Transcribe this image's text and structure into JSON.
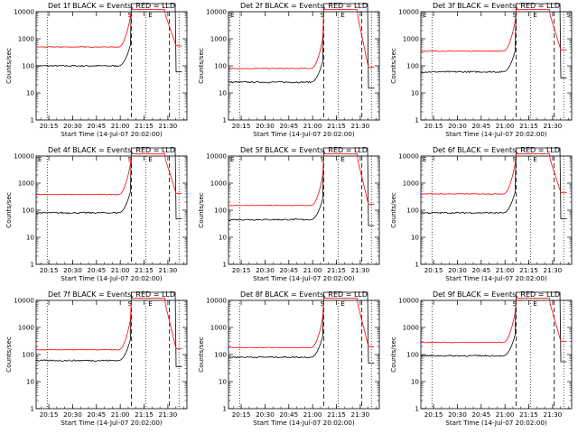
{
  "chart_data": [
    {
      "type": "line",
      "title": "Det 1f BLACK = Events, RED = LLD",
      "xlabel": "Start Time (14-Jul-07 20:02:00)",
      "ylabel": "Counts/sec",
      "x_ticks": [
        "20:15",
        "20:30",
        "20:45",
        "21:00",
        "21:15",
        "21:30"
      ],
      "x_range_minutes": [
        5,
        100
      ],
      "ylim": [
        1,
        10000
      ],
      "y_ticks": [
        "1",
        "10",
        "100",
        "1000",
        "10000"
      ],
      "y_scale": "log",
      "annotations": {
        "left": "",
        "right": "",
        "markers": [
          "S",
          "E"
        ]
      },
      "series": [
        {
          "color": "#000000",
          "start": 100
        },
        {
          "color": "#ff0000",
          "start": 500
        }
      ],
      "colors": {
        "events": "#000000",
        "lld": "#ff0000"
      }
    },
    {
      "type": "line",
      "title": "Det 2f BLACK = Events, RED = LLD",
      "xlabel": "Start Time (14-Jul-07 20:02:00)",
      "ylabel": "Counts/sec",
      "x_ticks": [
        "20:15",
        "20:30",
        "20:45",
        "21:00",
        "21:15",
        "21:30"
      ],
      "x_range_minutes": [
        5,
        100
      ],
      "ylim": [
        1,
        10000
      ],
      "y_ticks": [
        "1",
        "10",
        "100",
        "1000",
        "10000"
      ],
      "y_scale": "log",
      "annotations": {
        "left": "E",
        "right": "",
        "markers": [
          "S",
          "E"
        ]
      },
      "series": [
        {
          "color": "#000000",
          "start": 25
        },
        {
          "color": "#ff0000",
          "start": 80
        }
      ],
      "colors": {
        "events": "#000000",
        "lld": "#ff0000"
      }
    },
    {
      "type": "line",
      "title": "Det 3f BLACK = Events, RED = LLD",
      "xlabel": "Start Time (14-Jul-07 20:02:00)",
      "ylabel": "Counts/sec",
      "x_ticks": [
        "20:15",
        "20:30",
        "20:45",
        "21:00",
        "21:15",
        "21:30"
      ],
      "x_range_minutes": [
        5,
        100
      ],
      "ylim": [
        1,
        10000
      ],
      "y_ticks": [
        "1",
        "10",
        "100",
        "1000",
        "10000"
      ],
      "y_scale": "log",
      "annotations": {
        "left": "E",
        "right": "S",
        "markers": [
          "S",
          "E"
        ]
      },
      "series": [
        {
          "color": "#000000",
          "start": 60
        },
        {
          "color": "#ff0000",
          "start": 350
        }
      ],
      "colors": {
        "events": "#000000",
        "lld": "#ff0000"
      }
    },
    {
      "type": "line",
      "title": "Det 4f BLACK = Events, RED = LLD",
      "xlabel": "Start Time (14-Jul-07 20:02:00)",
      "ylabel": "Counts/sec",
      "x_ticks": [
        "20:15",
        "20:30",
        "20:45",
        "21:00",
        "21:15",
        "21:30"
      ],
      "x_range_minutes": [
        5,
        100
      ],
      "ylim": [
        1,
        10000
      ],
      "y_ticks": [
        "1",
        "10",
        "100",
        "1000",
        "10000"
      ],
      "y_scale": "log",
      "annotations": {
        "left": "E",
        "right": "",
        "markers": [
          "S",
          "E"
        ]
      },
      "series": [
        {
          "color": "#000000",
          "start": 80
        },
        {
          "color": "#ff0000",
          "start": 380
        }
      ],
      "colors": {
        "events": "#000000",
        "lld": "#ff0000"
      }
    },
    {
      "type": "line",
      "title": "Det 5f BLACK = Events, RED = LLD",
      "xlabel": "Start Time (14-Jul-07 20:02:00)",
      "ylabel": "Counts/sec",
      "x_ticks": [
        "20:15",
        "20:30",
        "20:45",
        "21:00",
        "21:15",
        "21:30"
      ],
      "x_range_minutes": [
        5,
        100
      ],
      "ylim": [
        1,
        10000
      ],
      "y_ticks": [
        "1",
        "10",
        "100",
        "1000",
        "10000"
      ],
      "y_scale": "log",
      "annotations": {
        "left": "E",
        "right": "",
        "markers": [
          "S",
          "E"
        ]
      },
      "series": [
        {
          "color": "#000000",
          "start": 45
        },
        {
          "color": "#ff0000",
          "start": 150
        }
      ],
      "colors": {
        "events": "#000000",
        "lld": "#ff0000"
      }
    },
    {
      "type": "line",
      "title": "Det 6f BLACK = Events, RED = LLD",
      "xlabel": "Start Time (14-Jul-07 20:02:00)",
      "ylabel": "Counts/sec",
      "x_ticks": [
        "20:15",
        "20:30",
        "20:45",
        "21:00",
        "21:15",
        "21:30"
      ],
      "x_range_minutes": [
        5,
        100
      ],
      "ylim": [
        1,
        10000
      ],
      "y_ticks": [
        "1",
        "10",
        "100",
        "1000",
        "10000"
      ],
      "y_scale": "log",
      "annotations": {
        "left": "E",
        "right": "",
        "markers": [
          "S",
          "E"
        ]
      },
      "series": [
        {
          "color": "#000000",
          "start": 80
        },
        {
          "color": "#ff0000",
          "start": 400
        }
      ],
      "colors": {
        "events": "#000000",
        "lld": "#ff0000"
      }
    },
    {
      "type": "line",
      "title": "Det 7f BLACK = Events, RED = LLD",
      "xlabel": "Start Time (14-Jul-07 20:02:00)",
      "ylabel": "Counts/sec",
      "x_ticks": [
        "20:15",
        "20:30",
        "20:45",
        "21:00",
        "21:15",
        "21:30"
      ],
      "x_range_minutes": [
        5,
        100
      ],
      "ylim": [
        1,
        10000
      ],
      "y_ticks": [
        "1",
        "10",
        "100",
        "1000",
        "10000"
      ],
      "y_scale": "log",
      "annotations": {
        "left": "",
        "right": "",
        "markers": [
          "S",
          "E"
        ]
      },
      "series": [
        {
          "color": "#000000",
          "start": 60
        },
        {
          "color": "#ff0000",
          "start": 150
        }
      ],
      "colors": {
        "events": "#000000",
        "lld": "#ff0000"
      }
    },
    {
      "type": "line",
      "title": "Det 8f BLACK = Events, RED = LLD",
      "xlabel": "Start Time (14-Jul-07 20:02:00)",
      "ylabel": "Counts/sec",
      "x_ticks": [
        "20:15",
        "20:30",
        "20:45",
        "21:00",
        "21:15",
        "21:30"
      ],
      "x_range_minutes": [
        5,
        100
      ],
      "ylim": [
        1,
        10000
      ],
      "y_ticks": [
        "1",
        "10",
        "100",
        "1000",
        "10000"
      ],
      "y_scale": "log",
      "annotations": {
        "left": "",
        "right": "",
        "markers": [
          "S",
          "E"
        ]
      },
      "series": [
        {
          "color": "#000000",
          "start": 80
        },
        {
          "color": "#ff0000",
          "start": 180
        }
      ],
      "colors": {
        "events": "#000000",
        "lld": "#ff0000"
      }
    },
    {
      "type": "line",
      "title": "Det 9f BLACK = Events, RED = LLD",
      "xlabel": "Start Time (14-Jul-07 20:02:00)",
      "ylabel": "Counts/sec",
      "x_ticks": [
        "20:15",
        "20:30",
        "20:45",
        "21:00",
        "21:15",
        "21:30"
      ],
      "x_range_minutes": [
        5,
        100
      ],
      "ylim": [
        1,
        10000
      ],
      "y_ticks": [
        "1",
        "10",
        "100",
        "1000",
        "10000"
      ],
      "y_scale": "log",
      "annotations": {
        "left": "",
        "right": "",
        "markers": [
          "S",
          "E"
        ]
      },
      "series": [
        {
          "color": "#000000",
          "start": 90
        },
        {
          "color": "#ff0000",
          "start": 280
        }
      ],
      "colors": {
        "events": "#000000",
        "lld": "#ff0000"
      }
    }
  ]
}
